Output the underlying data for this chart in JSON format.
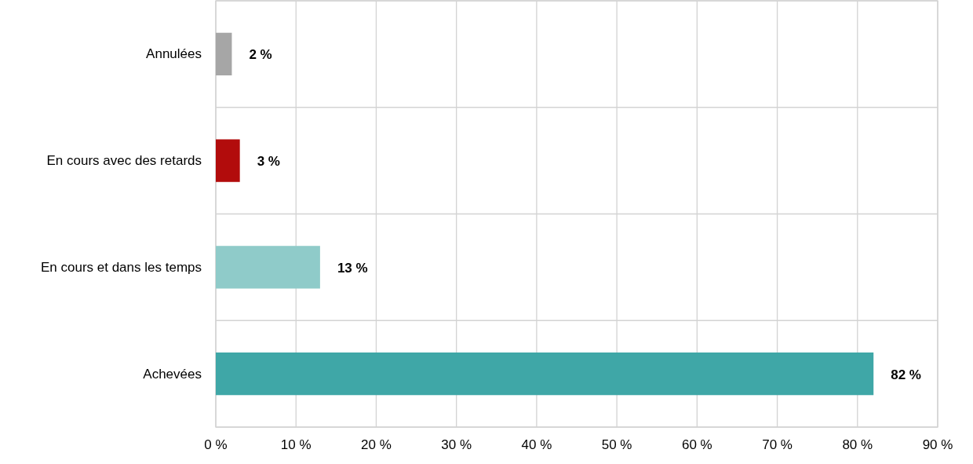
{
  "chart_data": {
    "type": "bar",
    "orientation": "horizontal",
    "categories": [
      "Annulées",
      "En cours avec des retards",
      "En cours et dans les temps",
      "Achevées"
    ],
    "values": [
      2,
      3,
      13,
      82
    ],
    "colors": [
      "#a6a6a6",
      "#b20c0c",
      "#8fcbc9",
      "#3fa7a7"
    ],
    "value_labels": [
      "2 %",
      "3 %",
      "13 %",
      "82 %"
    ],
    "xlim": [
      0,
      90
    ],
    "xticks": [
      {
        "value": 0,
        "label": "0 %"
      },
      {
        "value": 10,
        "label": "10 %"
      },
      {
        "value": 20,
        "label": "20 %"
      },
      {
        "value": 30,
        "label": "30 %"
      },
      {
        "value": 40,
        "label": "40 %"
      },
      {
        "value": 50,
        "label": "50 %"
      },
      {
        "value": 60,
        "label": "60 %"
      },
      {
        "value": 70,
        "label": "70 %"
      },
      {
        "value": 80,
        "label": "80 %"
      },
      {
        "value": 90,
        "label": "90 %"
      }
    ],
    "grid": true
  }
}
